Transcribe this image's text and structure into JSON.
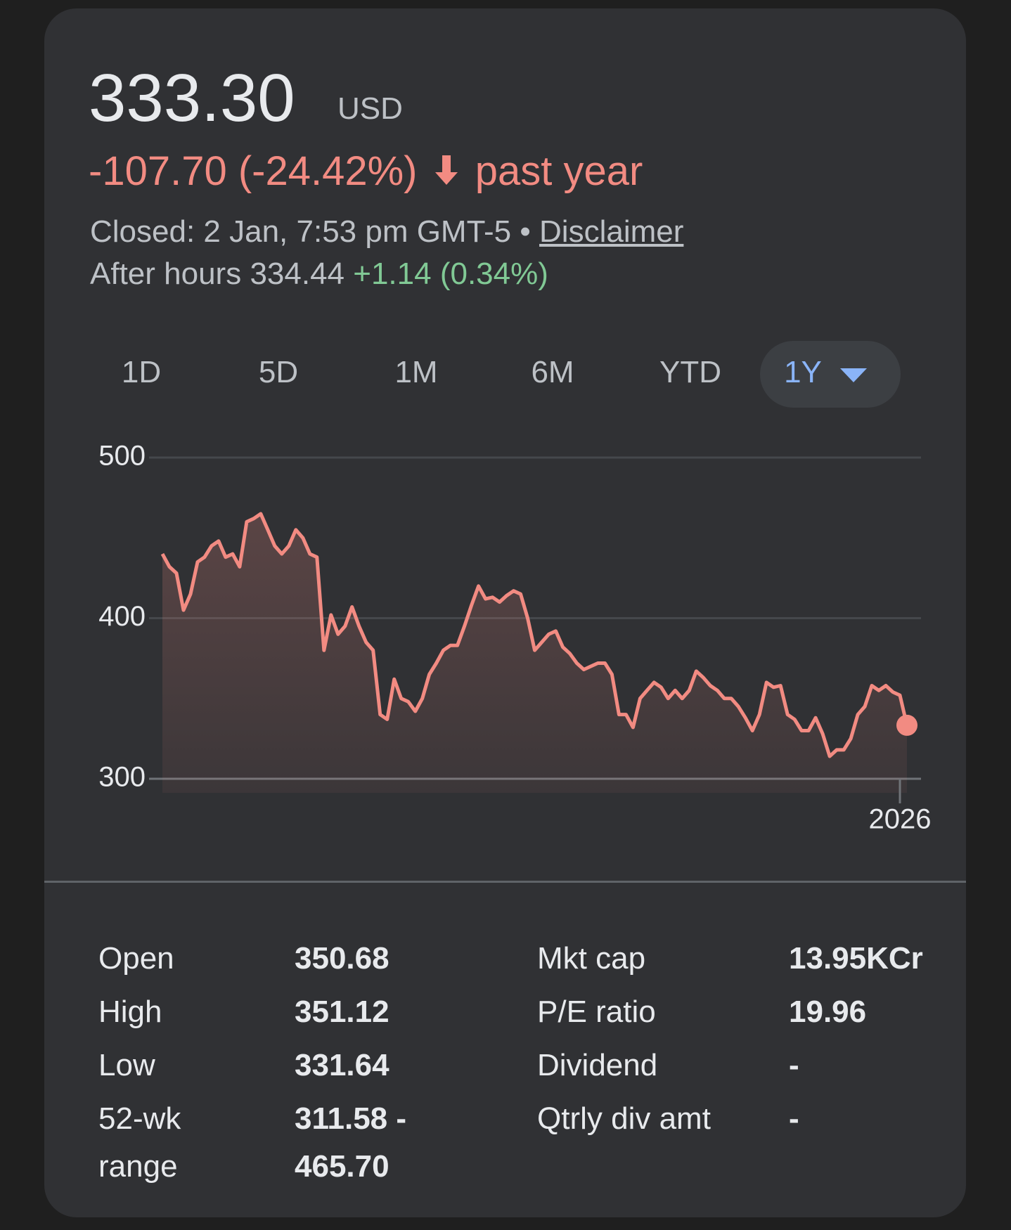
{
  "quote": {
    "price": "333.30",
    "currency": "USD",
    "change": "-107.70 (-24.42%)",
    "period": "past year",
    "status": "Closed: 2 Jan, 7:53 pm GMT-5",
    "separator": "•",
    "disclaimer": "Disclaimer",
    "after_hours_label": "After hours",
    "after_hours_price": "334.44",
    "after_hours_change": "+1.14 (0.34%)"
  },
  "ranges": [
    "1D",
    "5D",
    "1M",
    "6M",
    "YTD",
    "1Y"
  ],
  "chart_data": {
    "type": "line",
    "color": "#f28b82",
    "grid": true,
    "ylim": [
      300,
      500
    ],
    "yticks": [
      300,
      400,
      500
    ],
    "categories": [
      null,
      null,
      null,
      null,
      null,
      null,
      null,
      null,
      null,
      null,
      null,
      null,
      null,
      null,
      null,
      null,
      null,
      null,
      null,
      null,
      null,
      null,
      null,
      null,
      null,
      null,
      null,
      null,
      null,
      null,
      null,
      null,
      null,
      null,
      null,
      null,
      null,
      null,
      null,
      null,
      null,
      null,
      null,
      null,
      null,
      null,
      null,
      null,
      null,
      null,
      null,
      null,
      null,
      null,
      null,
      null,
      null,
      null,
      null,
      null,
      null,
      null,
      null,
      null,
      null,
      null,
      null,
      null,
      null,
      null,
      null,
      null,
      null,
      null,
      null,
      null,
      null,
      null,
      null,
      null,
      null,
      null,
      null,
      null,
      null,
      null,
      null,
      null,
      null,
      null,
      null,
      null,
      null,
      null,
      null,
      null,
      null,
      null,
      null,
      null,
      null,
      null,
      null,
      null,
      null,
      "2026",
      null
    ],
    "values": [
      440,
      432,
      428,
      405,
      415,
      435,
      438,
      445,
      448,
      438,
      440,
      432,
      460,
      462,
      465,
      455,
      445,
      440,
      445,
      455,
      450,
      440,
      438,
      380,
      402,
      390,
      395,
      407,
      395,
      385,
      380,
      340,
      337,
      362,
      350,
      348,
      342,
      350,
      365,
      372,
      380,
      383,
      383,
      395,
      408,
      420,
      412,
      413,
      410,
      414,
      417,
      415,
      400,
      380,
      385,
      390,
      392,
      382,
      378,
      372,
      368,
      370,
      372,
      372,
      365,
      340,
      340,
      332,
      350,
      355,
      360,
      357,
      350,
      355,
      350,
      355,
      367,
      363,
      358,
      355,
      350,
      350,
      345,
      338,
      330,
      340,
      360,
      357,
      358,
      340,
      337,
      330,
      330,
      338,
      328,
      314,
      318,
      318,
      325,
      340,
      345,
      358,
      355,
      358,
      354,
      352,
      333.3
    ]
  },
  "stats": {
    "left": [
      [
        "Open",
        "350.68"
      ],
      [
        "High",
        "351.12"
      ],
      [
        "Low",
        "331.64"
      ],
      [
        "52-wk range",
        "311.58 - 465.70"
      ]
    ],
    "right": [
      [
        "Mkt cap",
        "13.95KCr"
      ],
      [
        "P/E ratio",
        "19.96"
      ],
      [
        "Dividend",
        "-"
      ],
      [
        "Qtrly div amt",
        "-"
      ]
    ]
  }
}
